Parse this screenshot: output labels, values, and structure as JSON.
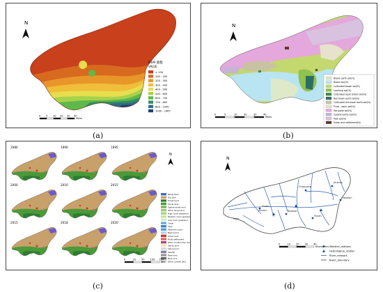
{
  "panels": {
    "a": {
      "caption": "(a)",
      "north": "N",
      "legend_title": "DEM 高程",
      "legend_subtitle": "VALUE",
      "classes": [
        {
          "label": "< 100",
          "color": "#c8401c"
        },
        {
          "label": "100 - 200",
          "color": "#d86a20"
        },
        {
          "label": "200 - 300",
          "color": "#e8962a"
        },
        {
          "label": "300 - 400",
          "color": "#f0be3a"
        },
        {
          "label": "400 - 500",
          "color": "#e6de4e"
        },
        {
          "label": "500 - 600",
          "color": "#a6d24a"
        },
        {
          "label": "600 - 700",
          "color": "#5eb84a"
        },
        {
          "label": "700 - 800",
          "color": "#2f8f62"
        },
        {
          "label": "800 - 1000",
          "color": "#2f6a8a"
        },
        {
          "label": "1000 - 1467",
          "color": "#1f3f78"
        }
      ],
      "scale_ticks": [
        "0",
        "5",
        "10",
        "20",
        "30",
        "40"
      ],
      "scale_unit": "Miles"
    },
    "b": {
      "caption": "(b)",
      "north": "N",
      "scale_ticks": [
        "0",
        "5",
        "10",
        "20",
        "30",
        "40"
      ],
      "scale_unit": "Miles",
      "legend": [
        {
          "label": "Brown earth soil(%)",
          "color": "#dde9c8"
        },
        {
          "label": "Brown soil(%)",
          "color": "#b9e4f2"
        },
        {
          "label": "Cultivated brown soil(%)",
          "color": "#c3d86e"
        },
        {
          "label": "Leaching soil(%)",
          "color": "#8fc24e"
        },
        {
          "label": "Cultivated aquic brown soil(%)",
          "color": "#3f8a45"
        },
        {
          "label": "Red brown earth soil(%)",
          "color": "#2c6e62"
        },
        {
          "label": "Cultivated red brown earth soil(%)",
          "color": "#c9c2a2"
        },
        {
          "label": "Fluvo - aquic soil(%)",
          "color": "#e7e2cc"
        },
        {
          "label": "Tea paste soil(%)",
          "color": "#e4a8dc"
        },
        {
          "label": "Coastal saline soil(%)",
          "color": "#c7b3d7"
        },
        {
          "label": "Peat soil(%)",
          "color": "#d9c2e0"
        },
        {
          "label": "Urban and settlement(%)",
          "color": "#5a3b28"
        }
      ]
    },
    "c": {
      "caption": "(c)",
      "years": [
        "1980",
        "1990",
        "1995",
        "2000",
        "2010",
        "2015",
        "2015",
        "2018",
        "2020"
      ],
      "north": "N",
      "scale_ticks": [
        "0",
        "25",
        "50",
        "100",
        "150"
      ],
      "scale_unit": "km",
      "legend": [
        {
          "label": "Paddy field",
          "color": "#4169c8"
        },
        {
          "label": "Dry land",
          "color": "#c8a06a"
        },
        {
          "label": "Forest land",
          "color": "#2f7d32"
        },
        {
          "label": "Shrub land",
          "color": "#4a9a3a"
        },
        {
          "label": "Sparse forest land",
          "color": "#7ab55c"
        },
        {
          "label": "Other forest land",
          "color": "#9dcb7a"
        },
        {
          "label": "High cover grassland",
          "color": "#a9d18e"
        },
        {
          "label": "Medium cover grassland",
          "color": "#c3e0a4"
        },
        {
          "label": "Low cover grassland",
          "color": "#d8eac4"
        },
        {
          "label": "Canal",
          "color": "#6fa8dc"
        },
        {
          "label": "Lake",
          "color": "#3d85c6"
        },
        {
          "label": "Reservoir pond",
          "color": "#5b9bd5"
        },
        {
          "label": "Beach land",
          "color": "#b7cde8"
        },
        {
          "label": "Urban land",
          "color": "#c0392b"
        },
        {
          "label": "Rural settlement",
          "color": "#e06666"
        },
        {
          "label": "Other construction land",
          "color": "#a64d79"
        },
        {
          "label": "Sandy land",
          "color": "#f1e3b5"
        },
        {
          "label": "Saline land",
          "color": "#d9d2e9"
        },
        {
          "label": "Swamp",
          "color": "#7f7fa8"
        },
        {
          "label": "Bare land",
          "color": "#999999"
        },
        {
          "label": "Bare rock",
          "color": "#666666"
        },
        {
          "label": "Other unused land",
          "color": "#cccccc"
        }
      ]
    },
    "d": {
      "caption": "(d)",
      "north": "N",
      "stations": [
        "Fuxin",
        "Chaoyang",
        "Jinzhou",
        "Beipiao",
        "Yixian",
        "Heishan",
        "Xinmin",
        "Faku"
      ],
      "scale_ticks": [
        "0",
        "10",
        "20",
        "30",
        "40"
      ],
      "scale_unit": "Kilometers",
      "legend": [
        {
          "label": "Weather_stations",
          "color": "#1f4e9c"
        },
        {
          "label": "Hydrological_station",
          "color": "#1f4e9c"
        },
        {
          "label": "River_network",
          "color": "#2f5fb0"
        },
        {
          "label": "Basin_boundary",
          "color": "#444444"
        }
      ]
    }
  }
}
